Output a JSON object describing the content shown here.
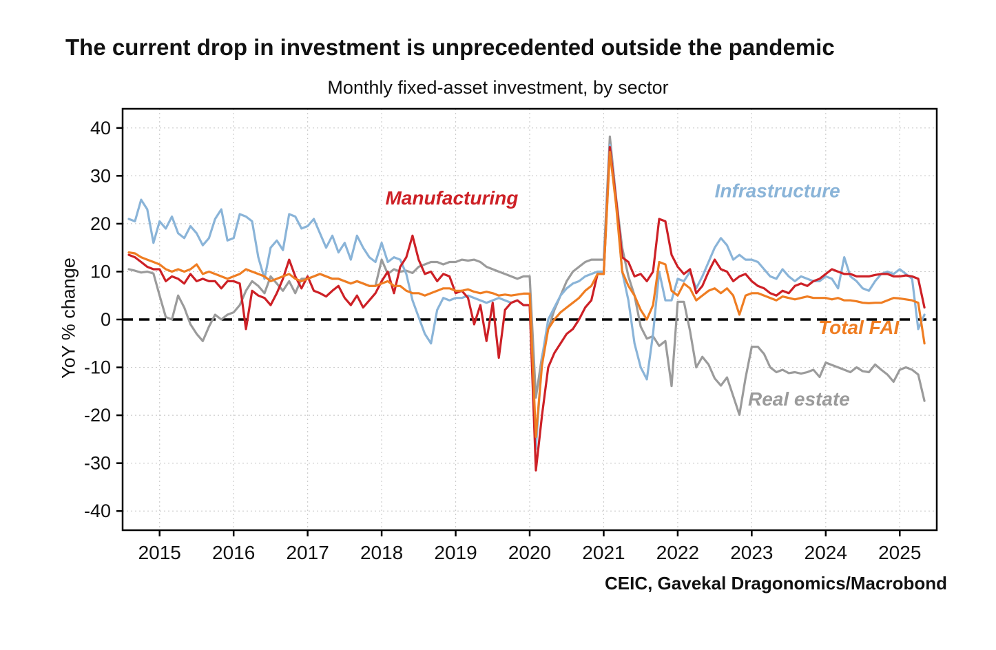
{
  "page": {
    "title": "The current drop in investment is unprecedented outside the pandemic",
    "subtitle": "Monthly fixed-asset investment, by sector",
    "ylabel": "YoY % change",
    "source": "CEIC, Gavekal Dragonomics/Macrobond"
  },
  "chart_data": {
    "type": "line",
    "title": "The current drop in investment is unprecedented outside the pandemic",
    "subtitle": "Monthly fixed-asset investment, by sector",
    "ylabel": "YoY % change",
    "ylim": [
      -40,
      40
    ],
    "y_ticks": [
      40,
      30,
      20,
      10,
      0,
      -10,
      -20,
      -30,
      -40
    ],
    "x_ticks": [
      2015,
      2016,
      2017,
      2018,
      2019,
      2020,
      2021,
      2022,
      2023,
      2024,
      2025
    ],
    "x_domain": [
      2014.5,
      2025.5
    ],
    "grid": "dotted",
    "zero_line": "dashed-black",
    "frequency": "monthly",
    "start_year": 2014,
    "start_month": 8,
    "colors": {
      "grid": "#cccccc",
      "axis": "#000000",
      "text": "#111111"
    },
    "series": [
      {
        "id": "real-estate",
        "name": "Real estate",
        "color": "#9b9b9b",
        "values": [
          10.5,
          10.2,
          9.8,
          10.0,
          9.6,
          5.0,
          0.5,
          0.0,
          5.0,
          2.5,
          -1.0,
          -3.0,
          -4.5,
          -1.5,
          1.0,
          0.0,
          1.0,
          1.5,
          3.0,
          6.0,
          8.0,
          7.0,
          5.5,
          9.0,
          7.5,
          6.0,
          8.0,
          5.5,
          8.5,
          8.5,
          9.0,
          9.5,
          9.0,
          8.5,
          8.5,
          8.0,
          7.5,
          8.0,
          7.5,
          7.0,
          7.0,
          12.5,
          9.5,
          10.5,
          10.0,
          10.2,
          9.7,
          11.0,
          11.5,
          12.0,
          12.0,
          11.5,
          12.0,
          12.0,
          12.5,
          12.3,
          12.5,
          12.0,
          11.0,
          10.5,
          10.0,
          9.5,
          9.0,
          8.5,
          9.0,
          9.0,
          -16.3,
          -7.7,
          -2.0,
          2.0,
          5.0,
          8.0,
          10.0,
          11.0,
          12.0,
          12.5,
          12.5,
          12.5,
          38.2,
          25.5,
          15.0,
          9.0,
          5.0,
          -1.5,
          -4.0,
          -3.5,
          -5.5,
          -4.5,
          -13.9,
          3.7,
          3.7,
          -2.4,
          -10.0,
          -7.8,
          -9.4,
          -12.3,
          -13.8,
          -12.1,
          -16.0,
          -19.9,
          -12.2,
          -5.7,
          -5.7,
          -7.2,
          -10.0,
          -11.0,
          -10.5,
          -11.2,
          -11.0,
          -11.3,
          -11.0,
          -10.5,
          -12.0,
          -9.0,
          -9.5,
          -10.0,
          -10.5,
          -11.0,
          -10.0,
          -10.8,
          -11.0,
          -9.4,
          -10.5,
          -11.5,
          -13.0,
          -10.5,
          -10.0,
          -10.5,
          -11.5,
          -17.0
        ]
      },
      {
        "id": "infrastructure",
        "name": "Infrastructure",
        "color": "#8ab4d8",
        "values": [
          21.0,
          20.5,
          25.0,
          23.0,
          16.0,
          20.5,
          19.0,
          21.5,
          18.0,
          17.0,
          19.5,
          18.0,
          15.5,
          17.0,
          21.0,
          23.0,
          16.5,
          17.0,
          22.0,
          21.5,
          20.5,
          13.0,
          8.5,
          15.0,
          16.5,
          14.5,
          22.0,
          21.5,
          19.0,
          19.5,
          21.0,
          18.0,
          15.0,
          17.5,
          14.0,
          16.0,
          12.5,
          17.5,
          15.0,
          13.0,
          12.0,
          16.0,
          12.0,
          13.0,
          12.5,
          9.5,
          4.0,
          0.5,
          -3.0,
          -5.0,
          2.0,
          4.5,
          4.0,
          4.5,
          4.5,
          5.0,
          4.5,
          4.0,
          3.5,
          4.0,
          4.5,
          4.0,
          3.5,
          4.0,
          3.0,
          3.0,
          -27.0,
          -8.0,
          0.0,
          2.5,
          5.0,
          6.5,
          7.5,
          8.0,
          9.0,
          9.5,
          10.0,
          10.0,
          36.5,
          25.0,
          10.0,
          4.0,
          -5.0,
          -10.0,
          -12.5,
          -3.0,
          10.0,
          4.0,
          4.0,
          8.5,
          8.0,
          10.0,
          6.5,
          9.0,
          12.0,
          15.0,
          17.0,
          15.5,
          12.5,
          13.5,
          12.5,
          12.5,
          12.0,
          10.5,
          9.0,
          8.5,
          10.5,
          9.0,
          8.0,
          9.0,
          8.5,
          8.0,
          8.0,
          9.0,
          8.5,
          6.5,
          13.0,
          9.0,
          8.0,
          6.5,
          6.0,
          8.0,
          9.5,
          10.0,
          9.5,
          10.5,
          9.5,
          8.5,
          -2.0,
          1.0
        ]
      },
      {
        "id": "manufacturing",
        "name": "Manufacturing",
        "color": "#cd2026",
        "values": [
          13.5,
          13.0,
          12.0,
          11.0,
          10.5,
          10.5,
          8.0,
          9.0,
          8.5,
          7.5,
          9.5,
          8.0,
          8.5,
          8.0,
          8.0,
          6.5,
          8.0,
          8.0,
          7.5,
          -2.0,
          6.0,
          5.0,
          4.5,
          3.0,
          5.5,
          8.5,
          12.5,
          9.0,
          6.5,
          9.0,
          6.0,
          5.5,
          4.8,
          6.0,
          7.0,
          4.5,
          3.0,
          5.0,
          2.5,
          4.0,
          5.5,
          8.0,
          10.0,
          5.5,
          11.0,
          13.0,
          17.5,
          12.5,
          9.5,
          10.0,
          8.0,
          9.5,
          9.0,
          5.5,
          6.0,
          4.5,
          -1.0,
          3.0,
          -4.5,
          3.5,
          -8.0,
          2.0,
          3.5,
          4.0,
          3.0,
          3.0,
          -31.5,
          -20.0,
          -10.0,
          -7.0,
          -5.0,
          -3.0,
          -2.0,
          0.0,
          2.5,
          4.0,
          9.5,
          9.5,
          36.0,
          25.0,
          13.0,
          12.0,
          9.0,
          9.5,
          8.0,
          10.0,
          21.0,
          20.5,
          13.5,
          11.0,
          9.5,
          10.5,
          5.5,
          7.0,
          10.0,
          12.5,
          10.5,
          10.0,
          8.0,
          9.0,
          9.5,
          8.0,
          7.0,
          6.5,
          5.5,
          5.0,
          6.0,
          5.5,
          7.0,
          7.5,
          7.0,
          8.0,
          8.5,
          9.5,
          10.5,
          10.0,
          9.5,
          9.5,
          9.0,
          9.0,
          9.0,
          9.3,
          9.5,
          9.5,
          9.0,
          9.0,
          9.2,
          9.0,
          8.5,
          2.5
        ]
      },
      {
        "id": "total-fai",
        "name": "Total FAI",
        "color": "#ef7d22",
        "values": [
          14.0,
          13.8,
          13.0,
          12.5,
          12.0,
          11.5,
          10.5,
          10.0,
          10.5,
          10.0,
          10.5,
          11.5,
          9.5,
          10.0,
          9.5,
          9.0,
          8.5,
          9.0,
          9.5,
          10.5,
          10.0,
          9.5,
          9.0,
          8.0,
          8.5,
          9.0,
          9.5,
          8.5,
          8.0,
          8.5,
          9.0,
          9.5,
          9.0,
          8.5,
          8.5,
          8.0,
          7.5,
          8.0,
          7.5,
          7.0,
          7.0,
          7.5,
          8.0,
          7.0,
          7.0,
          6.0,
          5.5,
          5.5,
          5.0,
          5.5,
          6.0,
          6.5,
          6.5,
          6.0,
          6.0,
          6.3,
          5.8,
          5.5,
          5.8,
          5.5,
          5.0,
          5.2,
          5.0,
          5.2,
          5.4,
          5.4,
          -24.5,
          -9.5,
          -2.0,
          0.0,
          1.5,
          2.5,
          3.5,
          4.5,
          6.0,
          7.0,
          9.5,
          9.5,
          35.0,
          24.0,
          10.0,
          7.0,
          5.0,
          2.0,
          0.0,
          3.0,
          12.0,
          11.5,
          6.0,
          5.0,
          7.5,
          6.5,
          4.0,
          5.0,
          6.0,
          6.5,
          5.5,
          6.5,
          5.0,
          1.0,
          5.0,
          5.5,
          5.5,
          5.0,
          4.5,
          4.0,
          4.8,
          4.5,
          4.2,
          4.5,
          4.8,
          4.5,
          4.5,
          4.5,
          4.2,
          4.5,
          4.0,
          4.0,
          3.8,
          3.5,
          3.4,
          3.5,
          3.5,
          4.0,
          4.5,
          4.4,
          4.2,
          4.0,
          3.5,
          -5.0
        ]
      }
    ],
    "annotations": [
      {
        "id": "manufacturing",
        "text": "Manufacturing",
        "color": "#cd2026",
        "x": 2018.05,
        "y": 24.0
      },
      {
        "id": "infrastructure",
        "text": "Infrastructure",
        "color": "#8ab4d8",
        "x": 2022.5,
        "y": 25.5
      },
      {
        "id": "total-fai",
        "text": "Total FAI",
        "color": "#ef7d22",
        "x": 2023.9,
        "y": -3.0
      },
      {
        "id": "real-estate",
        "text": "Real estate",
        "color": "#9b9b9b",
        "x": 2022.95,
        "y": -18.0
      }
    ]
  }
}
